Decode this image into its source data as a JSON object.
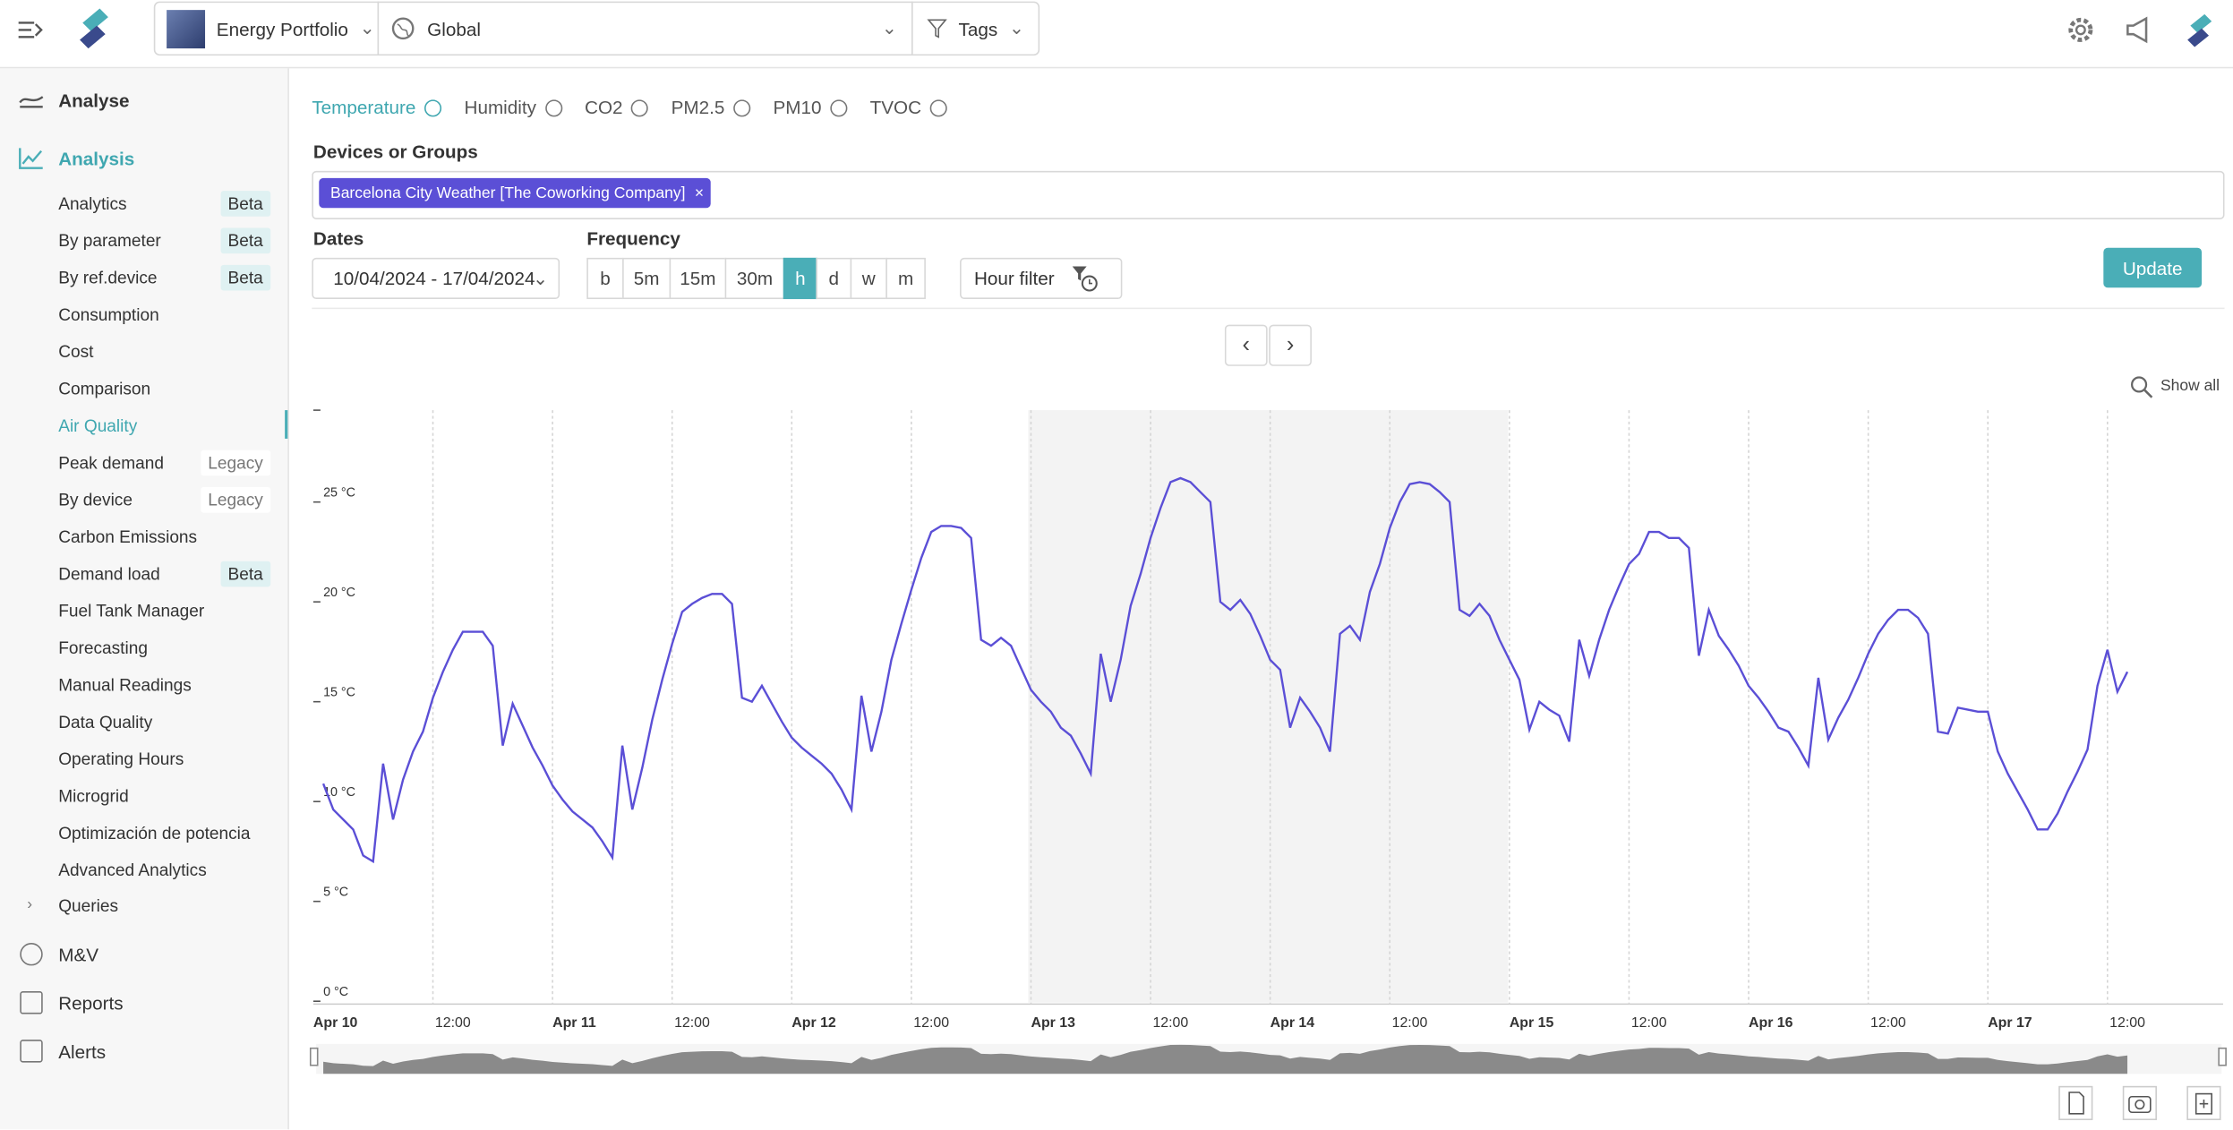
{
  "header": {
    "portfolio": "Energy Portfolio",
    "scope": "Global",
    "tags": "Tags"
  },
  "sidebar": {
    "top": "Analyse",
    "group": "Analysis",
    "items": [
      {
        "label": "Analytics",
        "badge": "Beta"
      },
      {
        "label": "By parameter",
        "badge": "Beta"
      },
      {
        "label": "By ref.device",
        "badge": "Beta"
      },
      {
        "label": "Consumption"
      },
      {
        "label": "Cost"
      },
      {
        "label": "Comparison"
      },
      {
        "label": "Air Quality",
        "active": true
      },
      {
        "label": "Peak demand",
        "badge": "Legacy"
      },
      {
        "label": "By device",
        "badge": "Legacy"
      },
      {
        "label": "Carbon Emissions"
      },
      {
        "label": "Demand load",
        "badge": "Beta"
      },
      {
        "label": "Fuel Tank Manager"
      },
      {
        "label": "Forecasting"
      },
      {
        "label": "Manual Readings"
      },
      {
        "label": "Data Quality"
      },
      {
        "label": "Operating Hours"
      },
      {
        "label": "Microgrid"
      },
      {
        "label": "Optimización de potencia"
      },
      {
        "label": "Advanced Analytics"
      }
    ],
    "queries": "Queries",
    "bottom": [
      "M&V",
      "Reports",
      "Alerts"
    ]
  },
  "tabs": [
    "Temperature",
    "Humidity",
    "CO2",
    "PM2.5",
    "PM10",
    "TVOC"
  ],
  "filters": {
    "devices_label": "Devices or Groups",
    "device_chip": "Barcelona City Weather [The Coworking Company]",
    "dates_label": "Dates",
    "date_range": "10/04/2024 - 17/04/2024",
    "frequency_label": "Frequency",
    "frequencies": [
      "b",
      "5m",
      "15m",
      "30m",
      "h",
      "d",
      "w",
      "m"
    ],
    "hour_filter": "Hour filter",
    "update": "Update",
    "show_all": "Show all"
  },
  "chart_data": {
    "type": "line",
    "color": "#5b4fd6",
    "x": [
      1,
      2,
      3,
      4,
      5,
      6,
      7,
      8,
      9,
      10,
      11,
      12,
      13,
      14,
      15,
      16,
      17,
      18,
      19,
      20,
      21,
      22,
      23,
      24,
      25,
      26,
      27,
      28,
      29,
      30,
      31,
      32,
      33,
      34,
      35,
      36,
      37,
      38,
      39,
      40,
      41,
      42,
      43,
      44,
      45,
      46,
      47,
      48,
      49,
      50,
      51,
      52,
      53,
      54,
      55,
      56,
      57,
      58,
      59,
      60,
      61,
      62,
      63,
      64,
      65,
      66,
      67,
      68,
      69,
      70,
      71,
      72,
      73,
      74,
      75,
      76,
      77,
      78,
      79,
      80,
      81,
      82,
      83,
      84,
      85,
      86,
      87,
      88,
      89,
      90,
      91,
      92,
      93,
      94,
      95,
      96,
      97,
      98,
      99,
      100,
      101,
      102,
      103,
      104,
      105,
      106,
      107,
      108,
      109,
      110,
      111,
      112,
      113,
      114,
      115,
      116,
      117,
      118,
      119,
      120,
      121,
      122,
      123,
      124,
      125,
      126,
      127,
      128,
      129,
      130,
      131,
      132,
      133,
      134,
      135,
      136,
      137,
      138,
      139,
      140,
      141,
      142,
      143,
      144,
      145,
      146,
      147,
      148,
      149,
      150,
      151,
      152,
      153,
      154,
      155,
      156,
      157,
      158,
      159,
      160,
      161,
      162,
      163,
      164,
      165,
      166,
      167,
      168,
      169,
      170,
      171,
      172,
      173,
      174,
      175,
      176,
      177,
      178,
      179,
      180,
      181,
      182
    ],
    "values": [
      10.9,
      9.6,
      9.1,
      8.6,
      7.3,
      7.0,
      11.9,
      9.1,
      11.1,
      12.5,
      13.5,
      15.2,
      16.5,
      17.6,
      18.5,
      18.5,
      18.5,
      17.8,
      12.8,
      14.9,
      13.8,
      12.7,
      11.8,
      10.8,
      10.1,
      9.5,
      9.1,
      8.7,
      8.0,
      7.2,
      12.8,
      9.6,
      11.7,
      14.1,
      16.1,
      17.9,
      19.5,
      19.9,
      20.2,
      20.4,
      20.4,
      19.9,
      15.2,
      15.0,
      15.8,
      14.9,
      14.0,
      13.2,
      12.7,
      12.3,
      11.9,
      11.4,
      10.6,
      9.6,
      15.3,
      12.5,
      14.5,
      17.1,
      18.9,
      20.6,
      22.2,
      23.5,
      23.8,
      23.8,
      23.7,
      23.2,
      18.1,
      17.8,
      18.2,
      17.8,
      16.7,
      15.6,
      15.0,
      14.5,
      13.7,
      13.3,
      12.4,
      11.4,
      17.4,
      15.0,
      17.1,
      19.8,
      21.4,
      23.2,
      24.7,
      26.0,
      26.2,
      26.0,
      25.5,
      25.0,
      20.0,
      19.6,
      20.1,
      19.4,
      18.3,
      17.1,
      16.6,
      13.7,
      15.2,
      14.5,
      13.7,
      12.5,
      18.4,
      18.8,
      18.1,
      20.5,
      21.9,
      23.7,
      25.0,
      25.9,
      26.0,
      25.9,
      25.5,
      25.0,
      19.6,
      19.3,
      19.9,
      19.3,
      18.1,
      17.1,
      16.1,
      13.6,
      15.0,
      14.6,
      14.3,
      13.0,
      18.1,
      16.3,
      18.1,
      19.6,
      20.8,
      21.9,
      22.4,
      23.5,
      23.5,
      23.2,
      23.2,
      22.7,
      17.3,
      19.6,
      18.3,
      17.6,
      16.8,
      15.8,
      15.2,
      14.5,
      13.7,
      13.5,
      12.7,
      11.8,
      16.2,
      13.1,
      14.2,
      15.1,
      16.2,
      17.4,
      18.4,
      19.1,
      19.6,
      19.6,
      19.2,
      18.4,
      13.5,
      13.4,
      14.7,
      14.6,
      14.5,
      14.5,
      12.5,
      11.4,
      10.5,
      9.6,
      8.6,
      8.6,
      9.4,
      10.5,
      11.5,
      12.6,
      15.8,
      17.6,
      15.5,
      16.5
    ],
    "xlim": [
      0,
      191.6
    ],
    "xticks": [
      {
        "value": 0,
        "label": "Apr 10"
      },
      {
        "value": 12,
        "label": "12:00"
      },
      {
        "value": 24,
        "label": "Apr 11"
      },
      {
        "value": 36,
        "label": "12:00"
      },
      {
        "value": 48,
        "label": "Apr 12"
      },
      {
        "value": 60,
        "label": "12:00"
      },
      {
        "value": 72,
        "label": "Apr 13"
      },
      {
        "value": 84,
        "label": "12:00"
      },
      {
        "value": 96,
        "label": "Apr 14"
      },
      {
        "value": 108,
        "label": "12:00"
      },
      {
        "value": 120,
        "label": "Apr 15"
      },
      {
        "value": 132,
        "label": "12:00"
      },
      {
        "value": 144,
        "label": "Apr 16"
      },
      {
        "value": 156,
        "label": "12:00"
      },
      {
        "value": 168,
        "label": "Apr 17"
      },
      {
        "value": 180,
        "label": "12:00"
      }
    ],
    "ylim": [
      0,
      29.6
    ],
    "yticks": [
      {
        "value": 0,
        "label": "0 °C"
      },
      {
        "value": 5,
        "label": "5 °C"
      },
      {
        "value": 10,
        "label": "10 °C"
      },
      {
        "value": 15,
        "label": "15 °C"
      },
      {
        "value": 20,
        "label": "20 °C"
      },
      {
        "value": 25,
        "label": "25 °C"
      }
    ],
    "grid": true
  }
}
